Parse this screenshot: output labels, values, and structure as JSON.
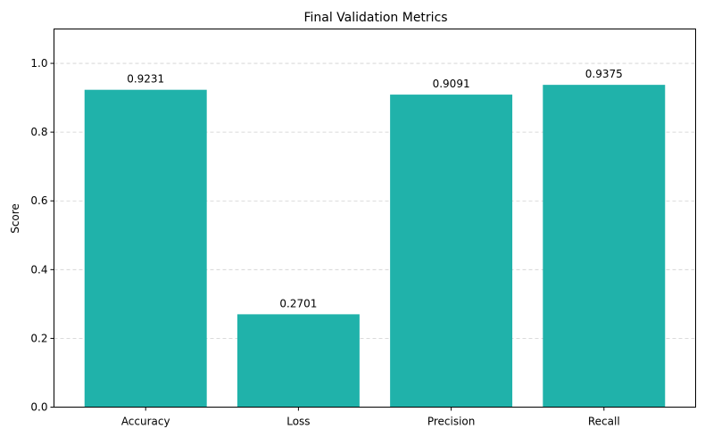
{
  "chart_data": {
    "type": "bar",
    "title": "Final Validation Metrics",
    "xlabel": "",
    "ylabel": "Score",
    "categories": [
      "Accuracy",
      "Loss",
      "Precision",
      "Recall"
    ],
    "values": [
      0.9231,
      0.2701,
      0.9091,
      0.9375
    ],
    "data_labels": [
      "0.9231",
      "0.2701",
      "0.9091",
      "0.9375"
    ],
    "ylim": [
      0,
      1.1
    ],
    "yticks": [
      0.0,
      0.2,
      0.4,
      0.6,
      0.8,
      1.0
    ],
    "ytick_labels": [
      "0.0",
      "0.2",
      "0.4",
      "0.6",
      "0.8",
      "1.0"
    ],
    "grid": "y-dashed",
    "bar_color": "#20b2aa"
  }
}
